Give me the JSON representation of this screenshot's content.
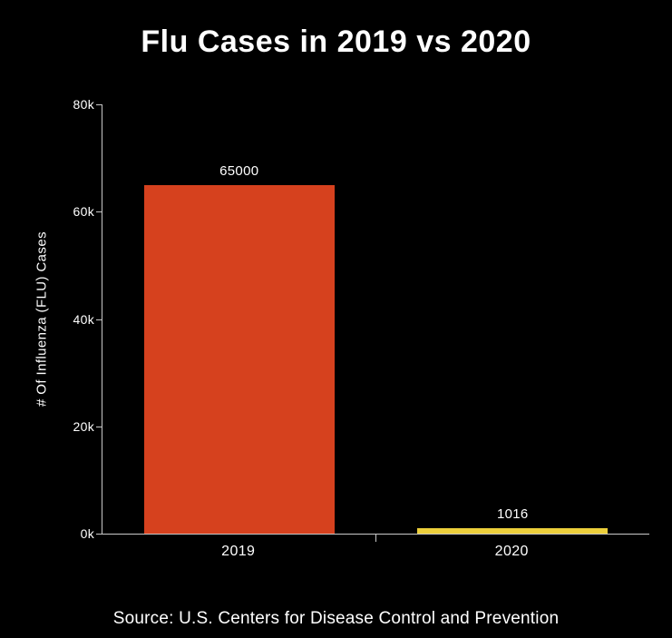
{
  "page": {
    "background": "#000000",
    "text_color": "#ffffff"
  },
  "chart_data": {
    "type": "bar",
    "title": "Flu Cases in 2019 vs 2020",
    "categories": [
      "2019",
      "2020"
    ],
    "values": [
      65000,
      1016
    ],
    "value_labels": [
      "65000",
      "1016"
    ],
    "xlabel": "",
    "ylabel": "# Of Influenza (FLU) Cases",
    "ylim": [
      0,
      80000
    ],
    "yticks": [
      {
        "value": 0,
        "label": "0k"
      },
      {
        "value": 20000,
        "label": "20k"
      },
      {
        "value": 40000,
        "label": "40k"
      },
      {
        "value": 60000,
        "label": "60k"
      },
      {
        "value": 80000,
        "label": "80k"
      }
    ],
    "bar_colors": [
      "#d6411e",
      "#eccf3b"
    ],
    "axis_color": "#c9c9c9",
    "background": "#000000",
    "grid": false,
    "legend": false,
    "source": "Source: U.S. Centers for Disease Control and Prevention"
  }
}
